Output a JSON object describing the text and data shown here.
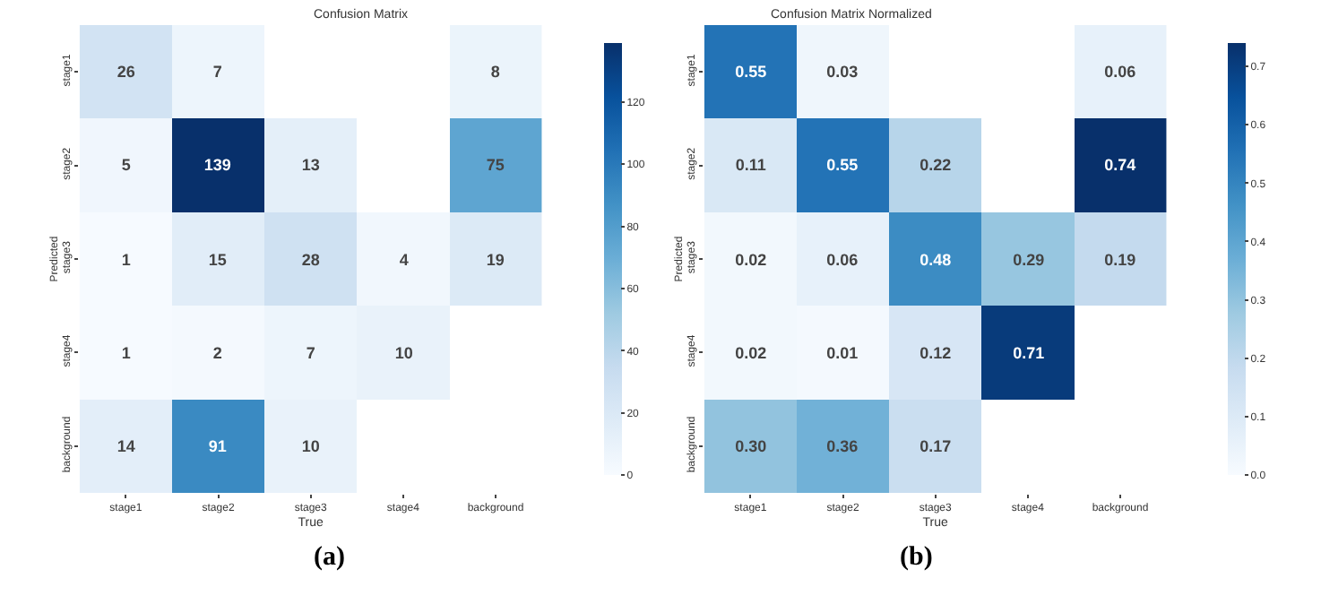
{
  "chart_data": [
    {
      "type": "heatmap",
      "title": "Confusion Matrix",
      "xlabel": "True",
      "ylabel": "Predicted",
      "categories": [
        "stage1",
        "stage2",
        "stage3",
        "stage4",
        "background"
      ],
      "y_categories": [
        "stage1",
        "stage2",
        "stage3",
        "stage4",
        "background"
      ],
      "cells": [
        [
          26,
          7,
          null,
          null,
          8
        ],
        [
          5,
          139,
          13,
          null,
          75
        ],
        [
          1,
          15,
          28,
          4,
          19
        ],
        [
          1,
          2,
          7,
          10,
          null
        ],
        [
          14,
          91,
          10,
          null,
          null
        ]
      ],
      "data_labels": true,
      "clim": [
        0,
        139
      ],
      "cticks": [
        0,
        20,
        40,
        60,
        80,
        100,
        120
      ],
      "annotations": [
        "(a)"
      ]
    },
    {
      "type": "heatmap",
      "title": "Confusion Matrix Normalized",
      "xlabel": "True",
      "ylabel": "Predicted",
      "categories": [
        "stage1",
        "stage2",
        "stage3",
        "stage4",
        "background"
      ],
      "y_categories": [
        "stage1",
        "stage2",
        "stage3",
        "stage4",
        "background"
      ],
      "cells": [
        [
          0.55,
          0.03,
          null,
          null,
          0.06
        ],
        [
          0.11,
          0.55,
          0.22,
          null,
          0.74
        ],
        [
          0.02,
          0.06,
          0.48,
          0.29,
          0.19
        ],
        [
          0.02,
          0.01,
          0.12,
          0.71,
          null
        ],
        [
          0.3,
          0.36,
          0.17,
          null,
          null
        ]
      ],
      "cell_labels": [
        [
          "0.55",
          "0.03",
          null,
          null,
          "0.06"
        ],
        [
          "0.11",
          "0.55",
          "0.22",
          null,
          "0.74"
        ],
        [
          "0.02",
          "0.06",
          "0.48",
          "0.29",
          "0.19"
        ],
        [
          "0.02",
          "0.01",
          "0.12",
          "0.71",
          null
        ],
        [
          "0.30",
          "0.36",
          "0.17",
          null,
          null
        ]
      ],
      "clim": [
        0,
        0.74
      ],
      "cticks": [
        {
          "value": 0,
          "label": "0.0"
        },
        0.1,
        0.2,
        0.3,
        0.4,
        0.5,
        0.6,
        0.7
      ],
      "annotations": [
        "(b)"
      ]
    }
  ]
}
